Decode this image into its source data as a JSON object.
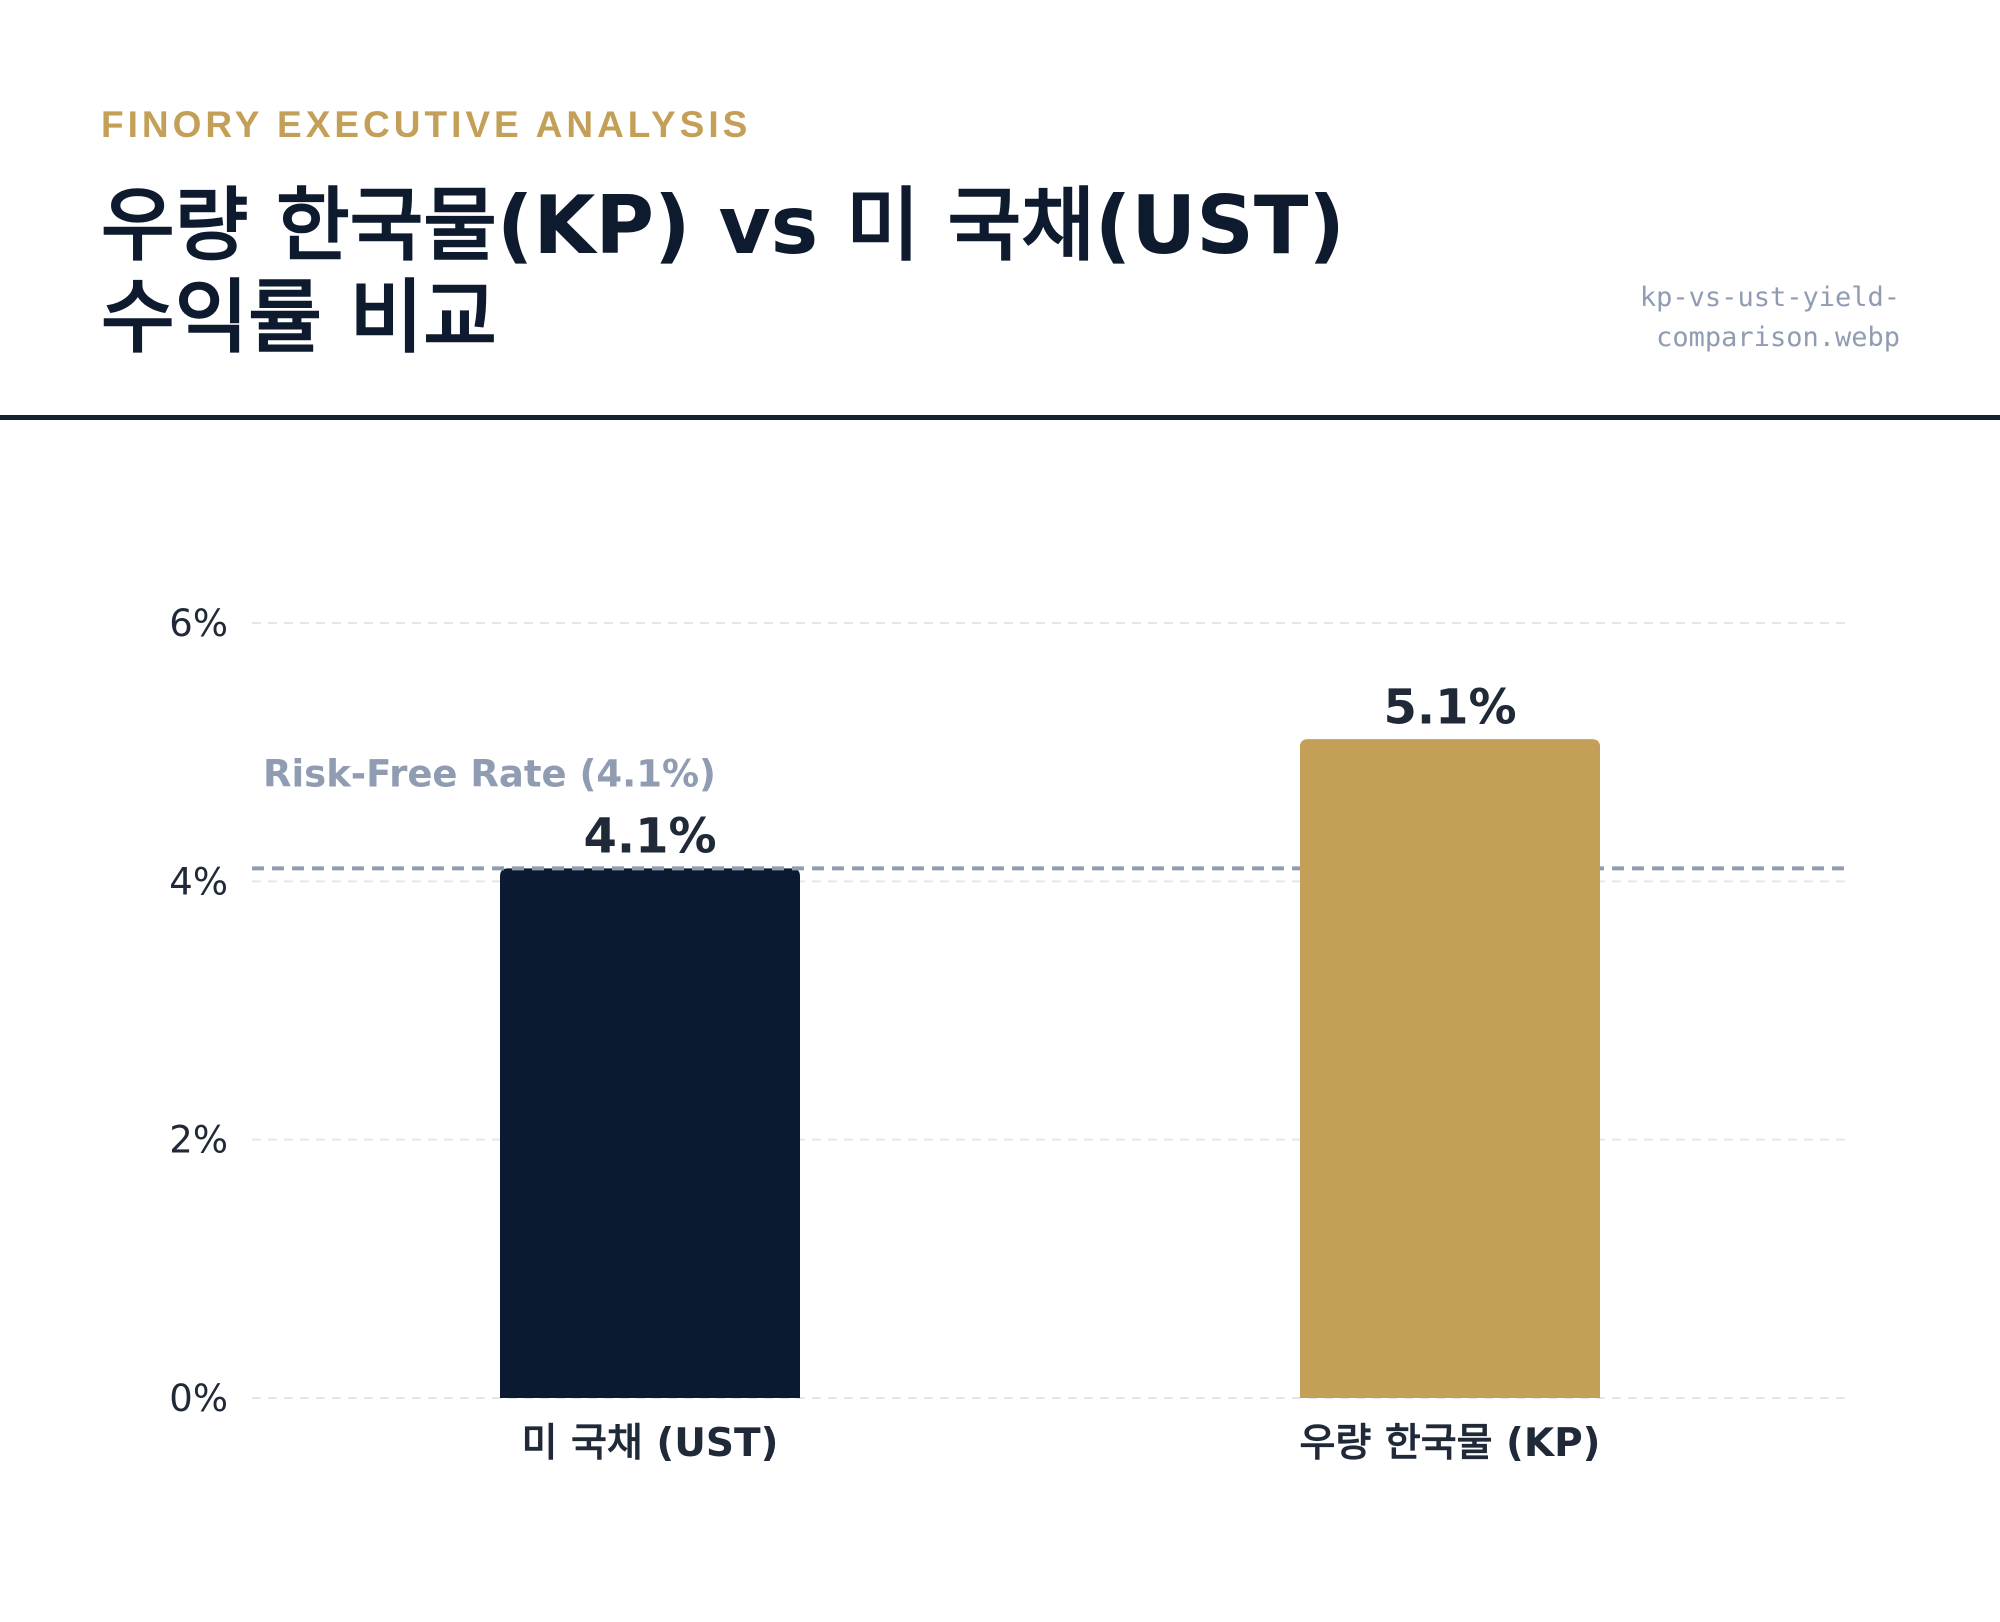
{
  "header": {
    "kicker": "FINORY EXECUTIVE ANALYSIS",
    "title": "우량 한국물(KP) vs 미 국채(UST) 수익률 비교",
    "filename_line1": "kp-vs-ust-yield-",
    "filename_line2": "comparison.webp"
  },
  "chart_data": {
    "type": "bar",
    "categories": [
      "미 국채 (UST)",
      "우량 한국물 (KP)"
    ],
    "values": [
      4.1,
      5.1
    ],
    "value_labels": [
      "4.1%",
      "5.1%"
    ],
    "colors": [
      "#0c1a31",
      "#c49f57"
    ],
    "ylim": [
      0,
      6
    ],
    "yticks": [
      {
        "value": 0,
        "label": "0%"
      },
      {
        "value": 2,
        "label": "2%"
      },
      {
        "value": 4,
        "label": "4%"
      },
      {
        "value": 6,
        "label": "6%"
      }
    ],
    "grid": true,
    "reference_line": {
      "value": 4.1,
      "label": "Risk-Free Rate (4.1%)",
      "color": "#8f9cb1"
    },
    "title": "",
    "xlabel": "",
    "ylabel": ""
  }
}
